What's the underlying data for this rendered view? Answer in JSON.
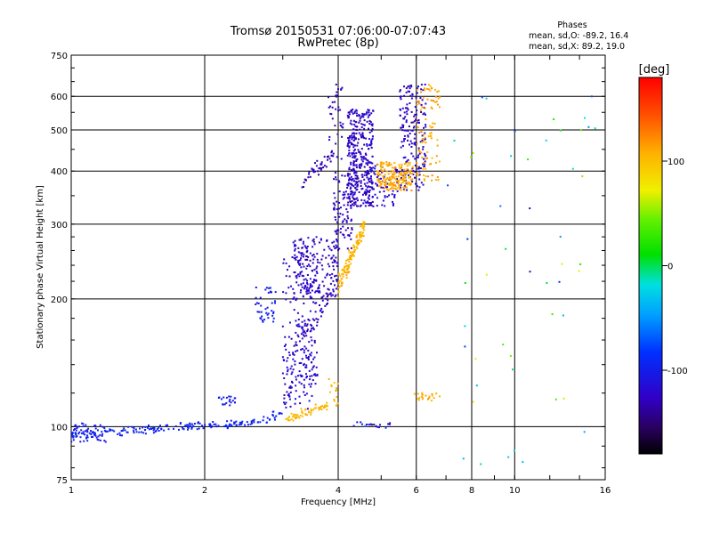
{
  "chart_data": {
    "type": "scatter",
    "title": "Tromsø 20150531 07:06:00-07:07:43",
    "subtitle": "RwPretec (8p)",
    "xlabel": "Frequency [MHz]",
    "ylabel": "Stationary phase Virtual Height [km]",
    "x_scale": "log",
    "y_scale": "log",
    "xlim": [
      1,
      16
    ],
    "ylim": [
      75,
      750
    ],
    "x_ticks": [
      1,
      2,
      4,
      6,
      8,
      10,
      16
    ],
    "x_tick_labels": [
      "1",
      "2",
      "4",
      "6",
      "8",
      "10",
      "16"
    ],
    "y_ticks": [
      75,
      100,
      200,
      300,
      400,
      500,
      600,
      750
    ],
    "y_tick_labels": [
      "75",
      "100",
      "200",
      "300",
      "400",
      "500",
      "600",
      "750"
    ],
    "grid": true,
    "stats": {
      "heading": "Phases",
      "line_o": "mean, sd,O: -89.2, 16.4",
      "line_x": "mean, sd,X:  89.2, 19.0"
    },
    "colorbar": {
      "unit": "[deg]",
      "ticks": [
        100,
        0,
        -100
      ],
      "tick_labels": [
        "100",
        "0",
        "-100"
      ],
      "range": [
        -180,
        180
      ]
    },
    "clusters": [
      {
        "f0": 1.0,
        "f1": 2.5,
        "h0": 96,
        "h1": 102,
        "shape": "line",
        "n": 160,
        "phase": -95,
        "phase_sd": 8,
        "jitter": 2
      },
      {
        "f0": 2.5,
        "f1": 3.0,
        "h0": 102,
        "h1": 108,
        "shape": "line",
        "n": 30,
        "phase": -95,
        "phase_sd": 8,
        "jitter": 2
      },
      {
        "f0": 1.0,
        "f1": 1.2,
        "h0": 92,
        "h1": 102,
        "shape": "box",
        "n": 50,
        "phase": -100,
        "phase_sd": 10
      },
      {
        "f0": 2.15,
        "f1": 2.35,
        "h0": 112,
        "h1": 118,
        "shape": "box",
        "n": 20,
        "phase": -100,
        "phase_sd": 8
      },
      {
        "f0": 2.6,
        "f1": 2.9,
        "h0": 175,
        "h1": 215,
        "shape": "box",
        "n": 40,
        "phase": -100,
        "phase_sd": 10
      },
      {
        "f0": 3.0,
        "f1": 3.2,
        "h0": 110,
        "h1": 150,
        "shape": "box",
        "n": 40,
        "phase": -120,
        "phase_sd": 15
      },
      {
        "f0": 3.0,
        "f1": 3.6,
        "h0": 125,
        "h1": 250,
        "shape": "box",
        "n": 120,
        "phase": -125,
        "phase_sd": 15
      },
      {
        "f0": 3.2,
        "f1": 3.5,
        "h0": 110,
        "h1": 175,
        "shape": "box",
        "n": 60,
        "phase": -120,
        "phase_sd": 15
      },
      {
        "f0": 3.15,
        "f1": 4.0,
        "h0": 200,
        "h1": 280,
        "shape": "box",
        "n": 200,
        "phase": -125,
        "phase_sd": 12
      },
      {
        "f0": 3.3,
        "f1": 3.8,
        "h0": 165,
        "h1": 200,
        "shape": "line",
        "n": 40,
        "phase": -125,
        "phase_sd": 10,
        "jitter": 10
      },
      {
        "f0": 3.3,
        "f1": 3.9,
        "h0": 375,
        "h1": 440,
        "shape": "line",
        "n": 40,
        "phase": -130,
        "phase_sd": 10,
        "jitter": 15
      },
      {
        "f0": 3.8,
        "f1": 4.1,
        "h0": 420,
        "h1": 640,
        "shape": "box",
        "n": 40,
        "phase": -130,
        "phase_sd": 10
      },
      {
        "f0": 3.9,
        "f1": 4.3,
        "h0": 260,
        "h1": 400,
        "shape": "box",
        "n": 100,
        "phase": -125,
        "phase_sd": 12
      },
      {
        "f0": 4.2,
        "f1": 4.8,
        "h0": 330,
        "h1": 560,
        "shape": "box",
        "n": 350,
        "phase": -125,
        "phase_sd": 12
      },
      {
        "f0": 4.6,
        "f1": 5.5,
        "h0": 330,
        "h1": 420,
        "shape": "box",
        "n": 80,
        "phase": -120,
        "phase_sd": 12
      },
      {
        "f0": 5.5,
        "f1": 6.3,
        "h0": 360,
        "h1": 640,
        "shape": "box",
        "n": 180,
        "phase": -125,
        "phase_sd": 12
      },
      {
        "f0": 4.0,
        "f1": 4.6,
        "h0": 215,
        "h1": 300,
        "shape": "line",
        "n": 130,
        "phase": 105,
        "phase_sd": 12,
        "jitter": 12
      },
      {
        "f0": 4.9,
        "f1": 5.9,
        "h0": 360,
        "h1": 420,
        "shape": "box",
        "n": 180,
        "phase": 110,
        "phase_sd": 12
      },
      {
        "f0": 6.0,
        "f1": 6.8,
        "h0": 380,
        "h1": 640,
        "shape": "box",
        "n": 90,
        "phase": 110,
        "phase_sd": 12
      },
      {
        "f0": 3.0,
        "f1": 3.8,
        "h0": 104,
        "h1": 112,
        "shape": "line",
        "n": 60,
        "phase": 105,
        "phase_sd": 10,
        "jitter": 2
      },
      {
        "f0": 3.8,
        "f1": 4.0,
        "h0": 112,
        "h1": 130,
        "shape": "box",
        "n": 15,
        "phase": 105,
        "phase_sd": 10
      },
      {
        "f0": 5.9,
        "f1": 6.8,
        "h0": 115,
        "h1": 120,
        "shape": "box",
        "n": 20,
        "phase": 110,
        "phase_sd": 10
      },
      {
        "f0": 4.3,
        "f1": 5.3,
        "h0": 99,
        "h1": 103,
        "shape": "box",
        "n": 20,
        "phase": -100,
        "phase_sd": 40
      },
      {
        "f0": 7.0,
        "f1": 16.0,
        "h0": 80,
        "h1": 650,
        "shape": "box",
        "n": 50,
        "phase": 0,
        "phase_sd": 100
      }
    ]
  }
}
